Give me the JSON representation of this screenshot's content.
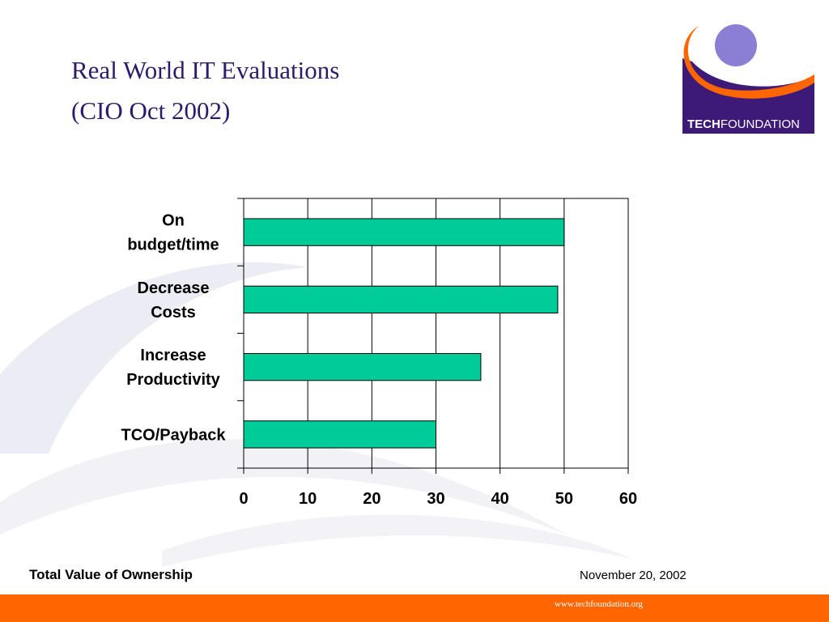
{
  "slide": {
    "title_line1": "Real World IT Evaluations",
    "title_line2": "(CIO Oct 2002)",
    "footer_left": "Total Value of Ownership",
    "footer_date": "November 20,  2002",
    "footer_url": "www.techfoundation.org"
  },
  "logo": {
    "text_bold": "TECH",
    "text_regular": "FOUNDATION",
    "colors": {
      "purple": "#3d1a78",
      "orange": "#ff6600",
      "circle": "#8b7fd4"
    }
  },
  "colors": {
    "title": "#2e1a6b",
    "bar_fill": "#00cc99",
    "footer_bar": "#ff6600",
    "background_swoosh": "#e9e9f3"
  },
  "chart_data": {
    "type": "bar",
    "orientation": "horizontal",
    "categories": [
      "On budget/time",
      "Decrease Costs",
      "Increase Productivity",
      "TCO/Payback"
    ],
    "category_label_lines": [
      [
        "On",
        "budget/time"
      ],
      [
        "Decrease",
        "Costs"
      ],
      [
        "Increase",
        "Productivity"
      ],
      [
        "TCO/Payback"
      ]
    ],
    "values": [
      50,
      49,
      37,
      30
    ],
    "xlim": [
      0,
      60
    ],
    "x_ticks": [
      0,
      10,
      20,
      30,
      40,
      50,
      60
    ],
    "grid": "vertical",
    "legend": "none",
    "title": "",
    "xlabel": "",
    "ylabel": ""
  }
}
